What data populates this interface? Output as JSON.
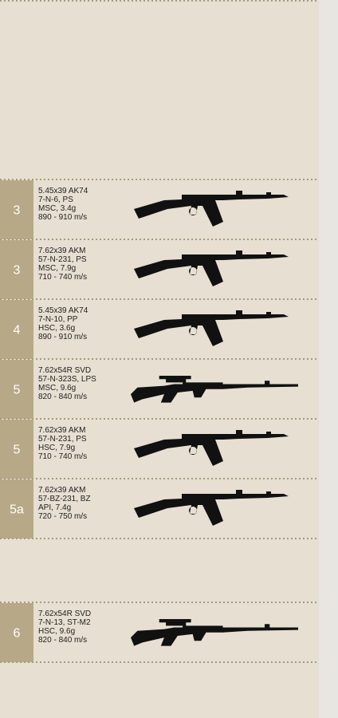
{
  "rows": [
    {
      "level": "3",
      "lines": [
        "5.45x39 AK74",
        "7-N-6, PS",
        "MSC, 3.4g",
        "890 - 910 m/s"
      ]
    },
    {
      "level": "3",
      "lines": [
        "7.62x39 AKM",
        "57-N-231, PS",
        "MSC, 7.9g",
        "710 - 740 m/s"
      ]
    },
    {
      "level": "4",
      "lines": [
        "5.45x39 AK74",
        "7-N-10, PP",
        "HSC, 3.6g",
        "890 - 910 m/s"
      ]
    },
    {
      "level": "5",
      "lines": [
        "7.62x54R SVD",
        "57-N-323S, LPS",
        "MSC, 9.6g",
        "820 - 840 m/s"
      ]
    },
    {
      "level": "5",
      "lines": [
        "7.62x39 AKM",
        "57-N-231, PS",
        "HSC, 7.9g",
        "710 - 740 m/s"
      ]
    },
    {
      "level": "5a",
      "lines": [
        "7.62x39 AKM",
        "57-BZ-231, BZ",
        "API, 7.4g",
        "720 - 750 m/s"
      ]
    },
    {
      "level": "6",
      "lines": [
        "7.62x54R SVD",
        "7-N-13, ST-M2",
        "HSC, 9.6g",
        "820 - 840 m/s"
      ]
    }
  ]
}
